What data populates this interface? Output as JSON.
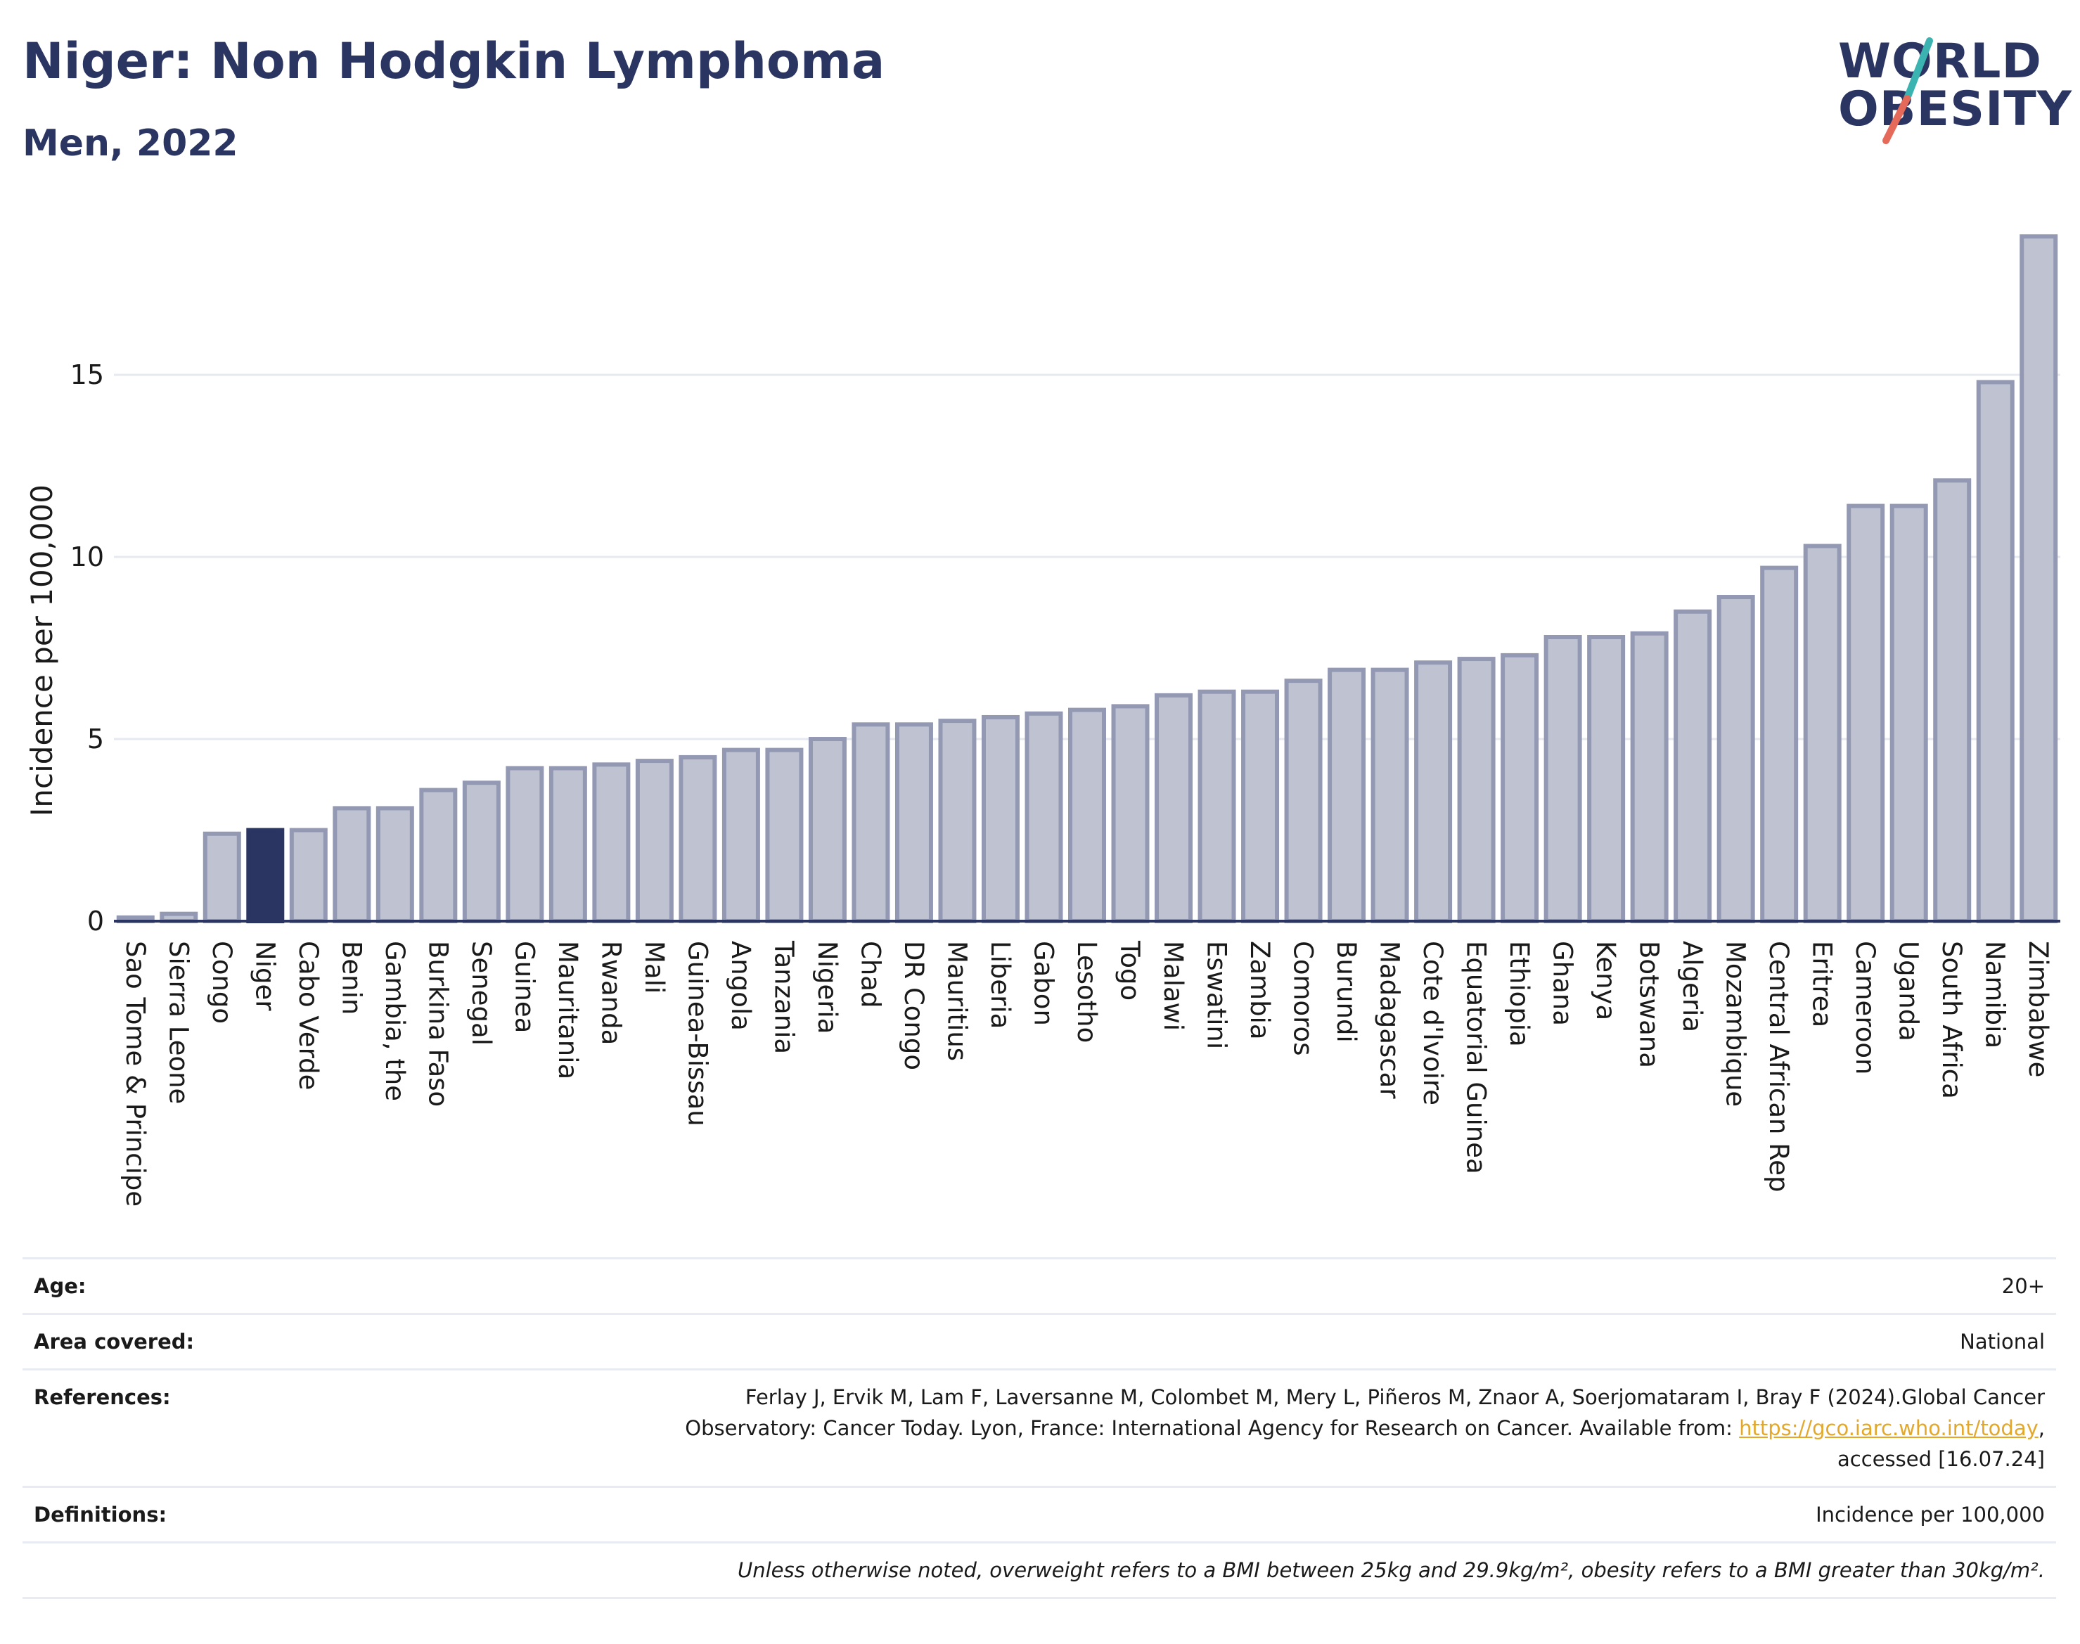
{
  "header": {
    "title": "Niger: Non Hodgkin Lymphoma",
    "subtitle": "Men, 2022"
  },
  "logo": {
    "line1": "WORLD",
    "line2": "OBESITY",
    "colors": {
      "text": "#2b3562",
      "slash_top": "#3bb3b0",
      "slash_bottom": "#e56a5a"
    }
  },
  "colors": {
    "bar_fill": "#bfc3d1",
    "bar_stroke": "#9398b3",
    "highlight_fill": "#2b3562",
    "axis": "#2b3562",
    "grid": "#e6e9f0"
  },
  "chart_data": {
    "type": "bar",
    "ylabel": "Incidence per 100,000",
    "ylim": [
      0,
      19.5
    ],
    "yticks": [
      0,
      5,
      10,
      15
    ],
    "grid": true,
    "highlight": "Niger",
    "categories": [
      "Sao Tome & Principe",
      "Sierra Leone",
      "Congo",
      "Niger",
      "Cabo Verde",
      "Benin",
      "Gambia, the",
      "Burkina Faso",
      "Senegal",
      "Guinea",
      "Mauritania",
      "Rwanda",
      "Mali",
      "Guinea-Bissau",
      "Angola",
      "Tanzania",
      "Nigeria",
      "Chad",
      "DR Congo",
      "Mauritius",
      "Liberia",
      "Gabon",
      "Lesotho",
      "Togo",
      "Malawi",
      "Eswatini",
      "Zambia",
      "Comoros",
      "Burundi",
      "Madagascar",
      "Cote d'Ivoire",
      "Equatorial Guinea",
      "Ethiopia",
      "Ghana",
      "Kenya",
      "Botswana",
      "Algeria",
      "Mozambique",
      "Central African Rep",
      "Eritrea",
      "Cameroon",
      "Uganda",
      "South Africa",
      "Namibia",
      "Zimbabwe"
    ],
    "values": [
      0.1,
      0.2,
      2.4,
      2.5,
      2.5,
      3.1,
      3.1,
      3.6,
      3.8,
      4.2,
      4.2,
      4.3,
      4.4,
      4.5,
      4.7,
      4.7,
      5.0,
      5.4,
      5.4,
      5.5,
      5.6,
      5.7,
      5.8,
      5.9,
      6.2,
      6.3,
      6.3,
      6.6,
      6.9,
      6.9,
      7.1,
      7.2,
      7.3,
      7.8,
      7.8,
      7.9,
      8.5,
      8.9,
      9.7,
      10.3,
      11.4,
      11.4,
      12.1,
      14.8,
      18.8
    ]
  },
  "info": {
    "age_label": "Age:",
    "age_value": "20+",
    "area_label": "Area covered:",
    "area_value": "National",
    "ref_label": "References:",
    "ref_text_1": "Ferlay J, Ervik M, Lam F, Laversanne M, Colombet M, Mery L, Piñeros M, Znaor A, Soerjomataram I, Bray F (2024).Global Cancer",
    "ref_text_2": "Observatory: Cancer Today. Lyon, France: International Agency for Research on Cancer. Available from: ",
    "ref_link": "https://gco.iarc.who.int/today",
    "ref_text_3": ",",
    "ref_text_4": "accessed [16.07.24]",
    "def_label": "Definitions:",
    "def_value": "Incidence per 100,000",
    "note": "Unless otherwise noted, overweight refers to a BMI between 25kg and 29.9kg/m², obesity refers to a BMI greater than 30kg/m²."
  }
}
